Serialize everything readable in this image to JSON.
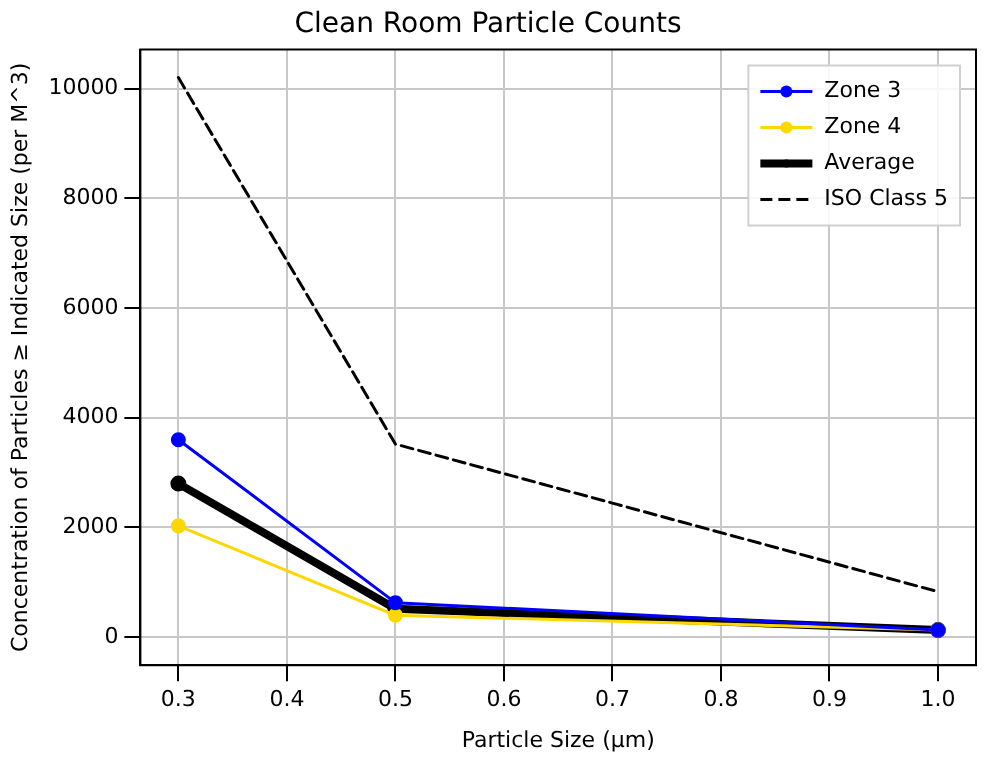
{
  "chart_data": {
    "type": "line",
    "title": "Clean Room Particle Counts",
    "xlabel": "Particle Size (μm)",
    "ylabel": "Concentration of Particles ≥ Indicated Size (per M^3)",
    "x": [
      0.3,
      0.5,
      1.0
    ],
    "series": [
      {
        "name": "Zone 3",
        "color": "#0000ff",
        "values": [
          3600,
          630,
          130
        ],
        "marker": "circle",
        "line_style": "solid"
      },
      {
        "name": "Zone 4",
        "color": "#ffd700",
        "values": [
          2030,
          400,
          130
        ],
        "marker": "circle",
        "line_style": "solid"
      },
      {
        "name": "Average",
        "color": "#000000",
        "values": [
          2800,
          520,
          130
        ],
        "marker": "circle",
        "line_style": "solid"
      },
      {
        "name": "ISO Class 5",
        "color": "#000000",
        "values": [
          10200,
          3520,
          830
        ],
        "marker": "none",
        "line_style": "dashed"
      }
    ],
    "xlim": [
      0.265,
      1.035
    ],
    "xticks": [
      {
        "value": 0.3,
        "label": "0.3"
      },
      {
        "value": 0.4,
        "label": "0.4"
      },
      {
        "value": 0.5,
        "label": "0.5"
      },
      {
        "value": 0.6,
        "label": "0.6"
      },
      {
        "value": 0.7,
        "label": "0.7"
      },
      {
        "value": 0.8,
        "label": "0.8"
      },
      {
        "value": 0.9,
        "label": "0.9"
      },
      {
        "value": 1.0,
        "label": "1.0"
      }
    ],
    "ylim": [
      -510,
      10710
    ],
    "yticks": [
      0,
      2000,
      4000,
      6000,
      8000,
      10000
    ],
    "grid": true,
    "legend": "top right"
  }
}
